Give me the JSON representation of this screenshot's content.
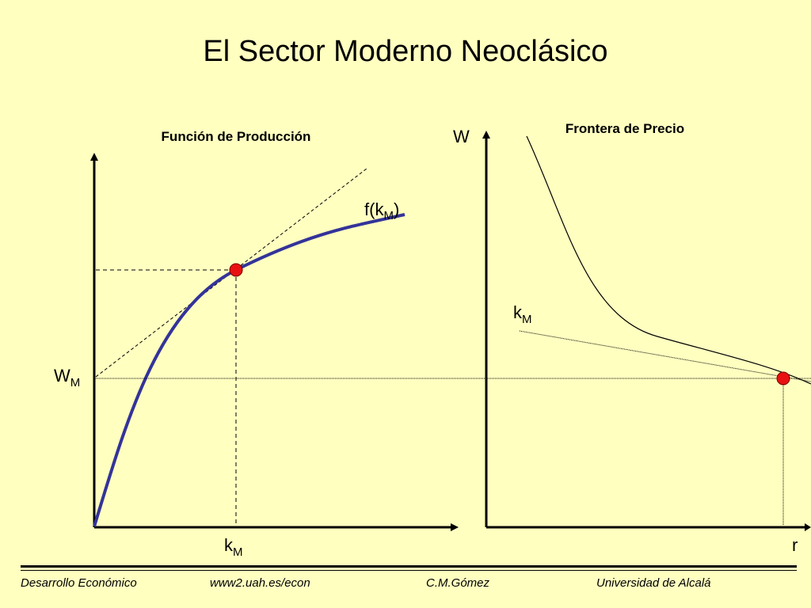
{
  "slide": {
    "title": "El Sector Moderno Neoclásico"
  },
  "left_panel": {
    "title": "Función de Producción",
    "curve_label_main": "f(k",
    "curve_label_sub": "M",
    "curve_label_end": ")",
    "y_label_main": "W",
    "y_label_sub": "M",
    "x_label_main": "k",
    "x_label_sub": "M"
  },
  "right_panel": {
    "title": "Frontera de Precio",
    "y_axis_label": "W",
    "x_axis_label": "r",
    "line_label_main": "k",
    "line_label_sub": "M"
  },
  "colors": {
    "background": "#FFFFC0",
    "curve": "#33339A",
    "point": "#E81010"
  },
  "footer": {
    "course": "Desarrollo Económico",
    "url": "www2.uah.es/econ",
    "author": "C.M.Gómez",
    "university": "Universidad de Alcalá"
  }
}
